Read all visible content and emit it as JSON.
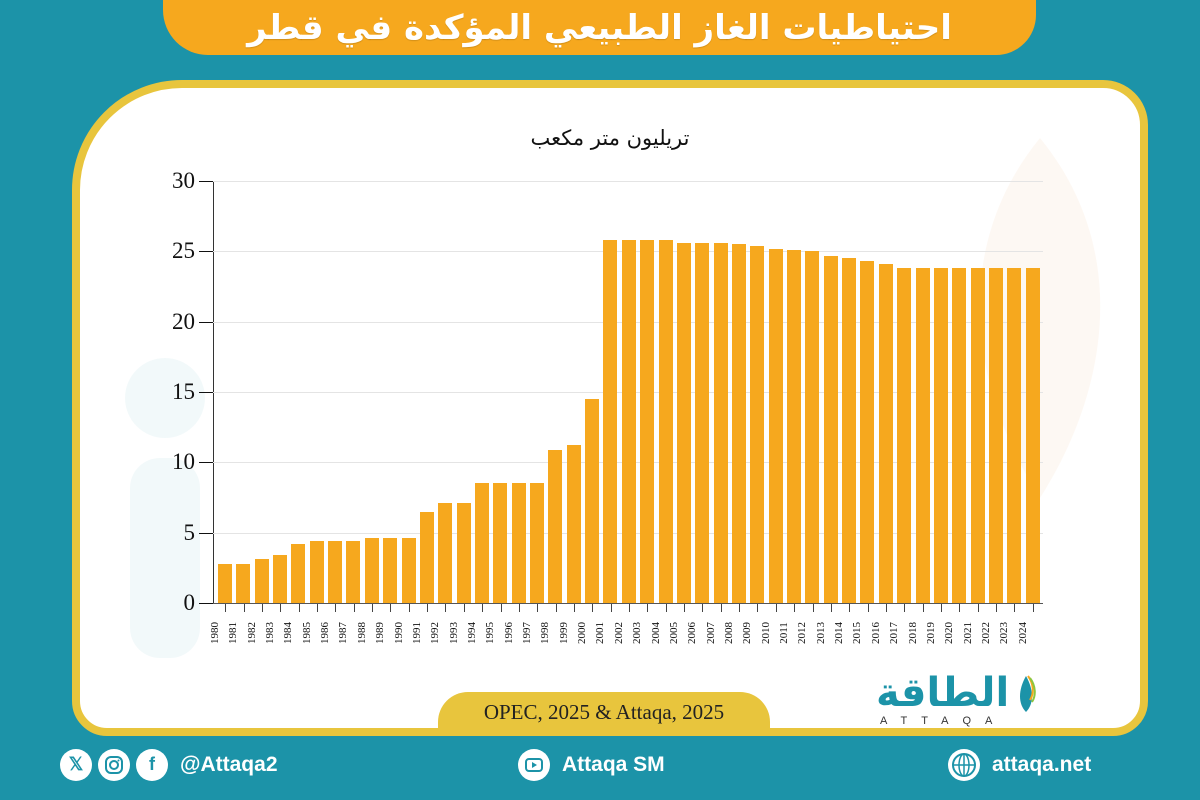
{
  "header": {
    "title": "احتياطيات الغاز الطبيعي المؤكدة في قطر"
  },
  "chart_data": {
    "type": "bar",
    "title": "احتياطيات الغاز الطبيعي المؤكدة في قطر",
    "ylabel": "تريليون متر مكعب",
    "xlabel": "",
    "ylim": [
      0,
      30
    ],
    "yticks": [
      0,
      5,
      10,
      15,
      20,
      25,
      30
    ],
    "grid": true,
    "legend": null,
    "color": "#f6a81e",
    "categories": [
      "1980",
      "1981",
      "1982",
      "1983",
      "1984",
      "1985",
      "1986",
      "1987",
      "1988",
      "1989",
      "1990",
      "1991",
      "1992",
      "1993",
      "1994",
      "1995",
      "1996",
      "1997",
      "1998",
      "1999",
      "2000",
      "2001",
      "2002",
      "2003",
      "2004",
      "2005",
      "2006",
      "2007",
      "2008",
      "2009",
      "2010",
      "2011",
      "2012",
      "2013",
      "2014",
      "2015",
      "2016",
      "2017",
      "2018",
      "2019",
      "2020",
      "2021",
      "2022",
      "2023",
      "2024"
    ],
    "values": [
      2.8,
      2.8,
      3.1,
      3.4,
      4.2,
      4.4,
      4.4,
      4.4,
      4.6,
      4.6,
      4.6,
      6.5,
      7.1,
      7.1,
      8.5,
      8.5,
      8.5,
      8.5,
      10.9,
      11.2,
      14.5,
      25.8,
      25.8,
      25.8,
      25.8,
      25.6,
      25.6,
      25.6,
      25.5,
      25.4,
      25.2,
      25.1,
      25.0,
      24.7,
      24.5,
      24.3,
      24.1,
      23.8,
      23.8,
      23.8,
      23.8,
      23.8,
      23.8,
      23.8,
      23.8
    ]
  },
  "chart": {
    "unit_label": "تريليون متر مكعب",
    "yticks": [
      "0",
      "5",
      "10",
      "15",
      "20",
      "25",
      "30"
    ]
  },
  "source": {
    "text": "OPEC, 2025 & Attaqa, 2025"
  },
  "logo": {
    "arabic": "الطاقة",
    "latin": "ATTAQA"
  },
  "footer": {
    "social_handle": "@Attaqa2",
    "youtube": "Attaqa SM",
    "website": "attaqa.net",
    "icons": [
      "x-icon",
      "instagram-icon",
      "facebook-icon",
      "youtube-icon",
      "globe-icon"
    ]
  }
}
